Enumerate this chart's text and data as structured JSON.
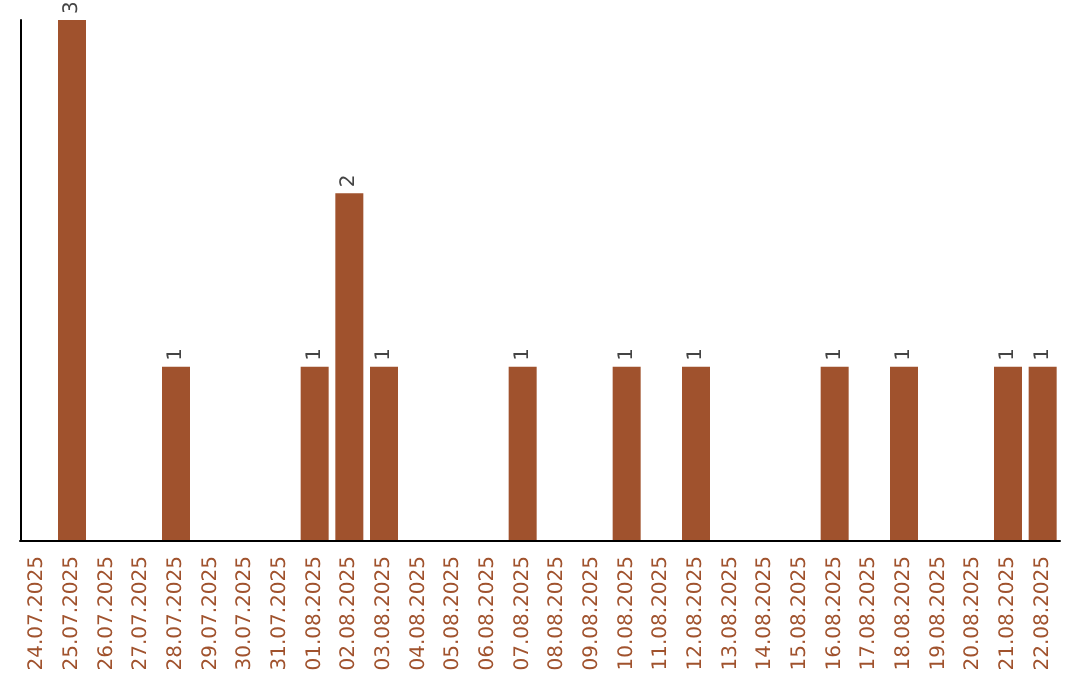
{
  "chart_data": {
    "type": "bar",
    "categories": [
      "24.07.2025",
      "25.07.2025",
      "26.07.2025",
      "27.07.2025",
      "28.07.2025",
      "29.07.2025",
      "30.07.2025",
      "31.07.2025",
      "01.08.2025",
      "02.08.2025",
      "03.08.2025",
      "04.08.2025",
      "05.08.2025",
      "06.08.2025",
      "07.08.2025",
      "08.08.2025",
      "09.08.2025",
      "10.08.2025",
      "11.08.2025",
      "12.08.2025",
      "13.08.2025",
      "14.08.2025",
      "15.08.2025",
      "16.08.2025",
      "17.08.2025",
      "18.08.2025",
      "19.08.2025",
      "20.08.2025",
      "21.08.2025",
      "22.08.2025"
    ],
    "values": [
      0,
      3,
      0,
      0,
      1,
      0,
      0,
      0,
      1,
      2,
      1,
      0,
      0,
      0,
      1,
      0,
      0,
      1,
      0,
      1,
      0,
      0,
      0,
      1,
      0,
      1,
      0,
      0,
      1,
      1
    ],
    "value_labels": [
      null,
      "3",
      null,
      null,
      "1",
      null,
      null,
      null,
      "1",
      "2",
      "1",
      null,
      null,
      null,
      "1",
      null,
      null,
      "1",
      null,
      "1",
      null,
      null,
      null,
      "1",
      null,
      "1",
      null,
      null,
      "1",
      "1"
    ],
    "color": "#a0522d",
    "tick_labels": "x"
  }
}
